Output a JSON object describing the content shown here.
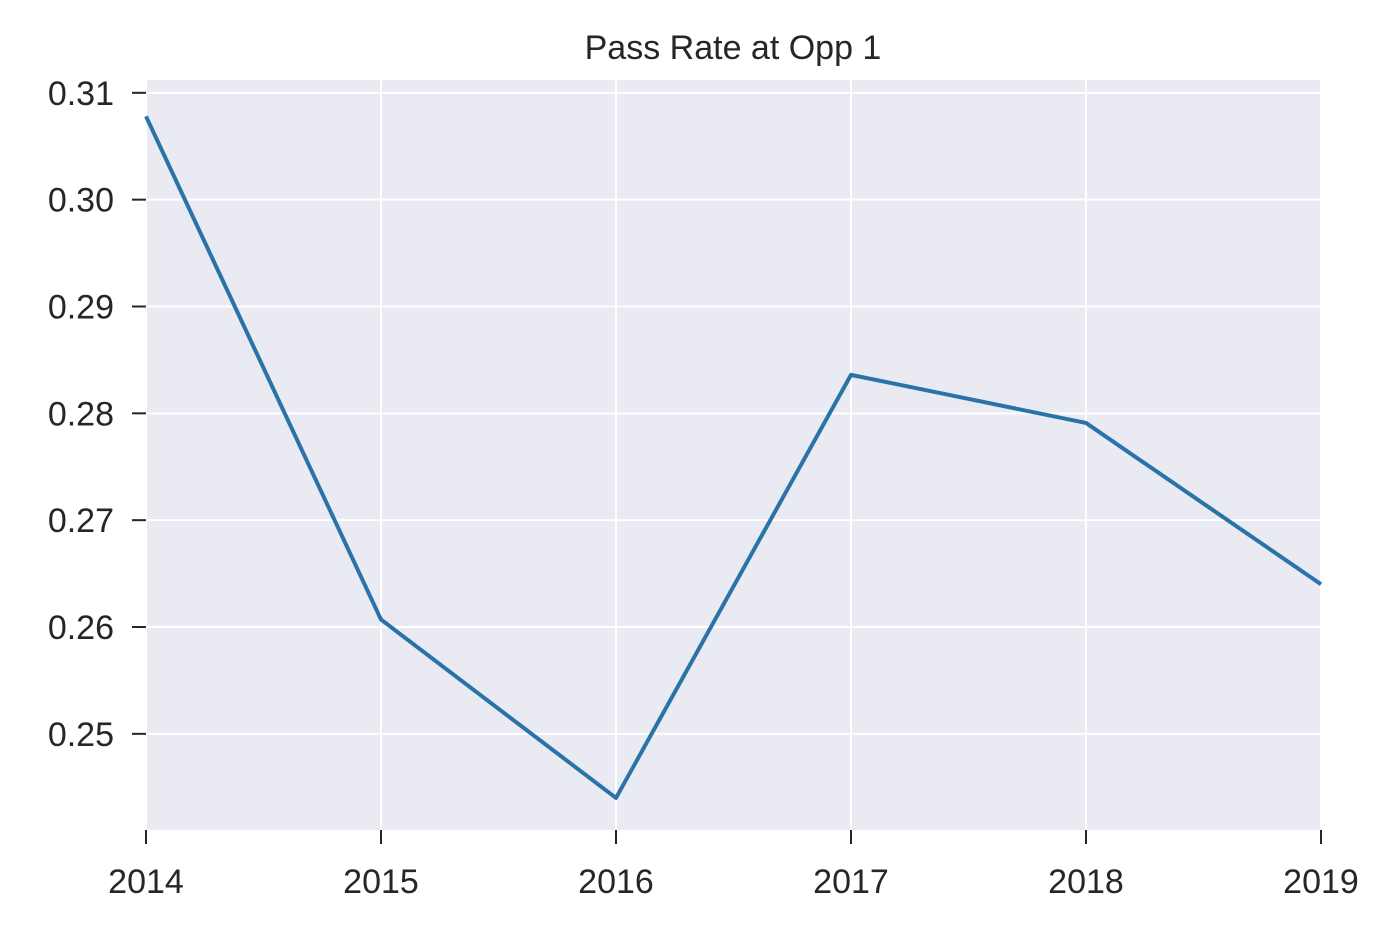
{
  "chart_data": {
    "type": "line",
    "title": "Pass Rate at Opp 1",
    "xlabel": "",
    "ylabel": "",
    "x": [
      2014,
      2015,
      2016,
      2017,
      2018,
      2019
    ],
    "x_tick_labels": [
      "2014",
      "2015",
      "2016",
      "2017",
      "2018",
      "2019"
    ],
    "y_ticks": [
      0.25,
      0.26,
      0.27,
      0.28,
      0.29,
      0.3,
      0.31
    ],
    "y_tick_labels": [
      "0.25",
      "0.26",
      "0.27",
      "0.28",
      "0.29",
      "0.30",
      "0.31"
    ],
    "xlim": [
      2014,
      2019
    ],
    "ylim": [
      0.241,
      0.3112
    ],
    "grid": true,
    "series": [
      {
        "values": [
          0.3078,
          0.2607,
          0.244,
          0.2836,
          0.2791,
          0.264
        ],
        "color": "#2a73a8"
      }
    ],
    "colors": {
      "plot_background": "#e9eaf2",
      "grid": "#ffffff",
      "text": "#262626",
      "tick": "#262626"
    }
  }
}
